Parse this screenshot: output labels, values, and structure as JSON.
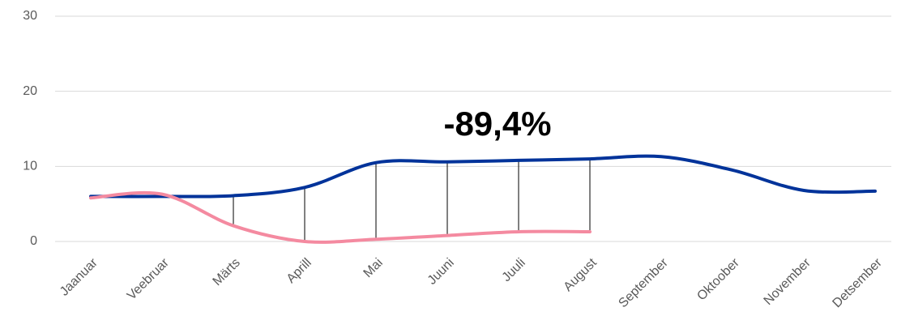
{
  "chart_data": {
    "type": "line",
    "categories": [
      "Jaanuar",
      "Veebruar",
      "Märts",
      "Aprill",
      "Mai",
      "Juuni",
      "Juuli",
      "August",
      "September",
      "Oktoober",
      "November",
      "Detsember"
    ],
    "series": [
      {
        "color": "#00339a",
        "values": [
          6.0,
          6.0,
          6.1,
          7.2,
          10.5,
          10.6,
          10.8,
          11.0,
          11.3,
          9.5,
          6.8,
          6.7
        ]
      },
      {
        "color": "#f48aa0",
        "values": [
          5.8,
          6.3,
          2.1,
          0.0,
          0.3,
          0.8,
          1.3,
          1.3,
          null,
          null,
          null,
          null
        ]
      }
    ],
    "ylim": [
      0,
      30
    ],
    "yticks": [
      0,
      10,
      20,
      30
    ],
    "grid": true,
    "drop_lines": true,
    "annotation": "-89,4%"
  }
}
